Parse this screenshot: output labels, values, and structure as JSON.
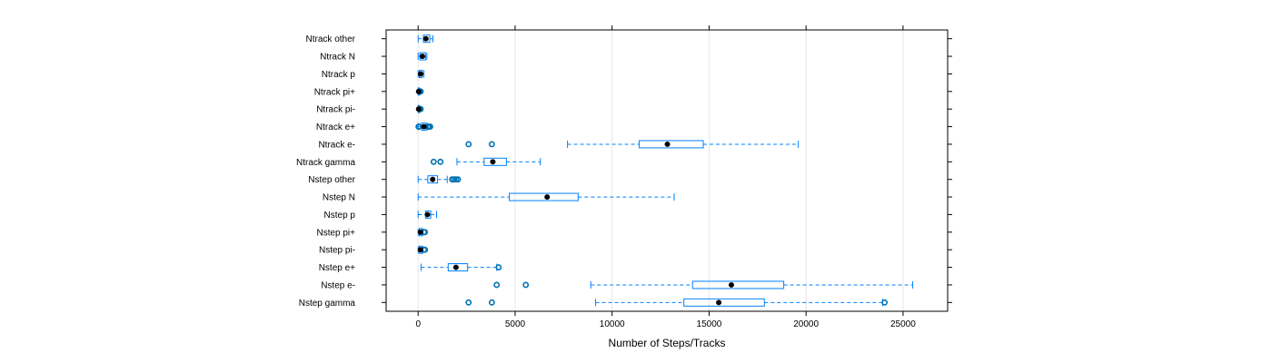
{
  "chart_data": {
    "type": "boxplot",
    "orientation": "horizontal",
    "xlabel": "Number of Steps/Tracks",
    "ylabel": "",
    "title": "",
    "xlim": [
      -1650,
      27300
    ],
    "x_ticks": [
      0,
      5000,
      10000,
      15000,
      20000,
      25000
    ],
    "grid": "vertical",
    "colors": {
      "box": "#0080ff",
      "whisker": "#0080ff",
      "median": "#000000",
      "outlier": "#0072b2",
      "frame": "#000000",
      "grid": "#e6e6e6"
    },
    "series": [
      {
        "name": "Ntrack other",
        "whisker_low": 0,
        "q1": 270,
        "median": 400,
        "q3": 600,
        "whisker_high": 760,
        "outliers": []
      },
      {
        "name": "Ntrack N",
        "whisker_low": 0,
        "q1": 90,
        "median": 220,
        "q3": 380,
        "whisker_high": 450,
        "outliers": []
      },
      {
        "name": "Ntrack p",
        "whisker_low": 0,
        "q1": 60,
        "median": 130,
        "q3": 220,
        "whisker_high": 300,
        "outliers": []
      },
      {
        "name": "Ntrack pi+",
        "whisker_low": 0,
        "q1": 10,
        "median": 25,
        "q3": 50,
        "whisker_high": 80,
        "outliers": [
          60,
          100,
          130
        ]
      },
      {
        "name": "Ntrack pi-",
        "whisker_low": 0,
        "q1": 10,
        "median": 25,
        "q3": 50,
        "whisker_high": 80,
        "outliers": [
          60,
          100,
          130
        ]
      },
      {
        "name": "Ntrack e+",
        "whisker_low": 0,
        "q1": 180,
        "median": 300,
        "q3": 420,
        "whisker_high": 480,
        "outliers": [
          20,
          50,
          500,
          560,
          620
        ]
      },
      {
        "name": "Ntrack e-",
        "whisker_low": 7700,
        "q1": 11400,
        "median": 12850,
        "q3": 14700,
        "whisker_high": 19600,
        "outliers": [
          2600,
          3800
        ]
      },
      {
        "name": "Ntrack gamma",
        "whisker_low": 2000,
        "q1": 3400,
        "median": 3850,
        "q3": 4550,
        "whisker_high": 6300,
        "outliers": [
          800,
          1150
        ]
      },
      {
        "name": "Nstep other",
        "whisker_low": 0,
        "q1": 500,
        "median": 750,
        "q3": 1000,
        "whisker_high": 1500,
        "outliers": [
          1750,
          1850,
          1950,
          2050
        ]
      },
      {
        "name": "Nstep N",
        "whisker_low": 0,
        "q1": 4700,
        "median": 6650,
        "q3": 8250,
        "whisker_high": 13200,
        "outliers": []
      },
      {
        "name": "Nstep p",
        "whisker_low": 0,
        "q1": 380,
        "median": 480,
        "q3": 650,
        "whisker_high": 950,
        "outliers": []
      },
      {
        "name": "Nstep pi+",
        "whisker_low": 0,
        "q1": 60,
        "median": 120,
        "q3": 200,
        "whisker_high": 250,
        "outliers": [
          300,
          350
        ]
      },
      {
        "name": "Nstep pi-",
        "whisker_low": 0,
        "q1": 60,
        "median": 120,
        "q3": 200,
        "whisker_high": 250,
        "outliers": [
          300,
          350
        ]
      },
      {
        "name": "Nstep e+",
        "whisker_low": 150,
        "q1": 1550,
        "median": 1950,
        "q3": 2550,
        "whisker_high": 4050,
        "outliers": [
          4150
        ]
      },
      {
        "name": "Nstep e-",
        "whisker_low": 8900,
        "q1": 14150,
        "median": 16150,
        "q3": 18850,
        "whisker_high": 25500,
        "outliers": [
          4050,
          5550
        ]
      },
      {
        "name": "Nstep gamma",
        "whisker_low": 9150,
        "q1": 13700,
        "median": 15500,
        "q3": 17850,
        "whisker_high": 23950,
        "outliers": [
          2600,
          3800,
          24050
        ]
      }
    ]
  }
}
